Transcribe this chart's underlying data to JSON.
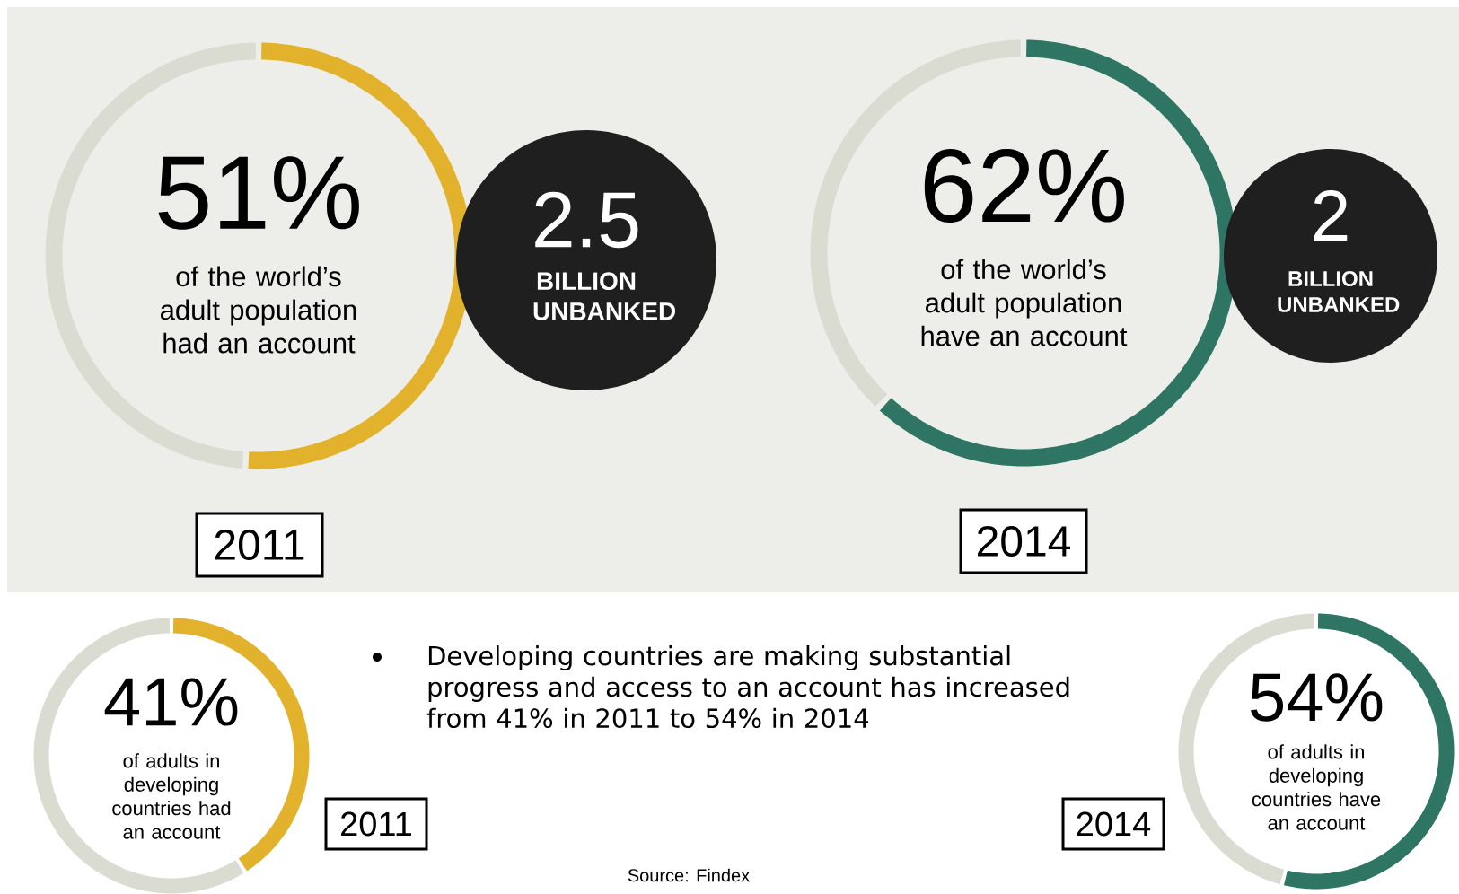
{
  "chart_data": [
    {
      "type": "donut",
      "categories": [
        null,
        null
      ],
      "values": [
        51,
        49
      ],
      "colors": [
        "#e2b22c",
        "#dadcd2"
      ],
      "annotations": [
        "51%",
        "of the world’s adult population had an account"
      ],
      "xlabel": "2011"
    },
    {
      "type": "other",
      "annotations": [
        "2.5",
        "BILLION UNBANKED"
      ]
    },
    {
      "type": "donut",
      "categories": [
        null,
        null
      ],
      "values": [
        62,
        38
      ],
      "colors": [
        "#2f7564",
        "#dadcd2"
      ],
      "annotations": [
        "62%",
        "of the world’s adult population have an account"
      ],
      "xlabel": "2014"
    },
    {
      "type": "other",
      "annotations": [
        "2",
        "BILLION UNBANKED"
      ]
    },
    {
      "type": "donut",
      "categories": [
        null,
        null
      ],
      "values": [
        41,
        59
      ],
      "colors": [
        "#e2b22c",
        "#dadcd2"
      ],
      "annotations": [
        "41%",
        "of adults in developing countries had an account"
      ],
      "xlabel": "2011"
    },
    {
      "type": "other",
      "annotations": [
        "Developing countries are making substantial progress and access to an account has increased from 41% in 2011 to 54% in 2014",
        "Source: Findex"
      ]
    },
    {
      "type": "donut",
      "categories": [
        null,
        null
      ],
      "values": [
        54,
        46
      ],
      "colors": [
        "#2f7564",
        "#dadcd2"
      ],
      "annotations": [
        "54%",
        "of adults in developing countries have an account"
      ],
      "xlabel": "2014"
    }
  ]
}
